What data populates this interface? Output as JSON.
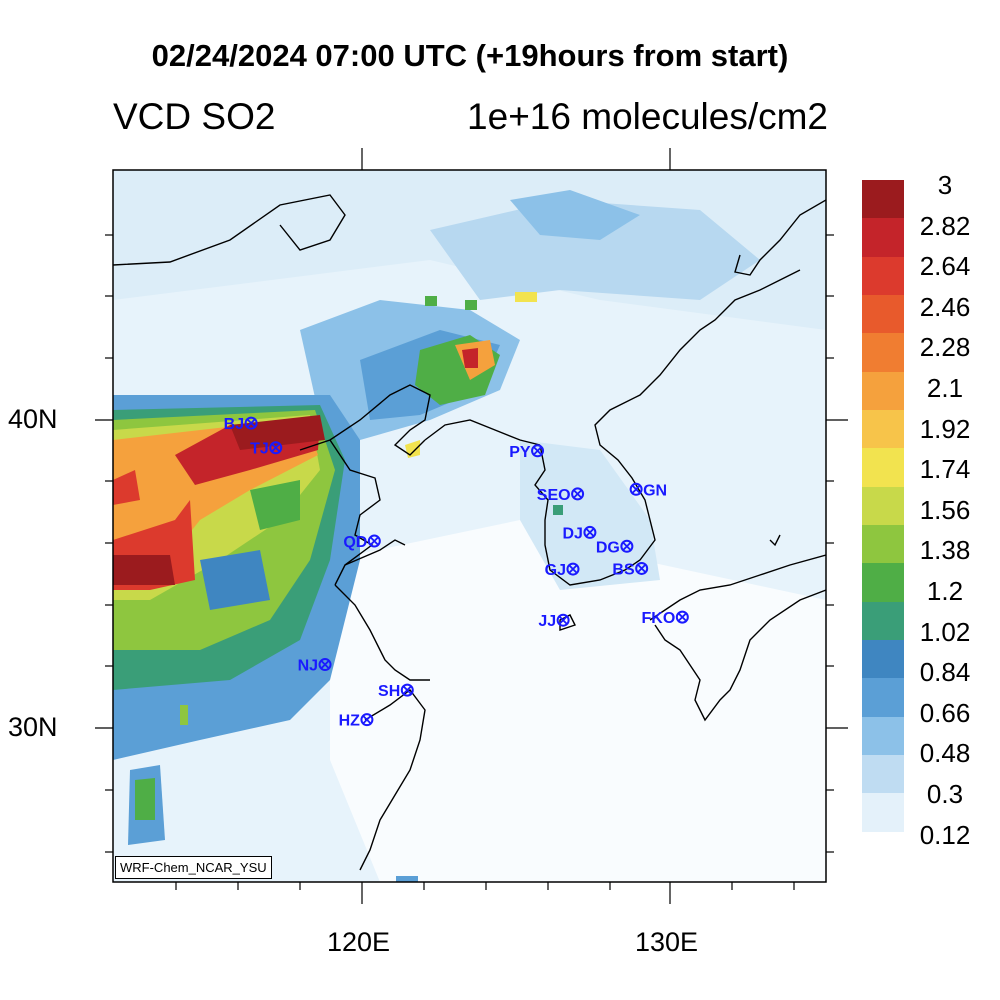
{
  "title": "02/24/2024 07:00 UTC (+19hours from start)",
  "subtitle_left": "VCD SO2",
  "subtitle_right": "1e+16 molecules/cm2",
  "model_tag": "WRF-Chem_NCAR_YSU",
  "lat_labels": [
    "40N",
    "30N"
  ],
  "lon_labels": [
    "120E",
    "130E"
  ],
  "colorbar": {
    "labels": [
      "3",
      "2.82",
      "2.64",
      "2.46",
      "2.28",
      "2.1",
      "1.92",
      "1.74",
      "1.56",
      "1.38",
      "1.2",
      "1.02",
      "0.84",
      "0.66",
      "0.48",
      "0.3",
      "0.12"
    ],
    "colors": [
      "#9b1b1e",
      "#c4242a",
      "#dc3a2d",
      "#e85a2c",
      "#f07d31",
      "#f5a13d",
      "#f7c44a",
      "#f2e34f",
      "#c8d94a",
      "#8ec63f",
      "#4fae46",
      "#3a9e78",
      "#3f86c1",
      "#5b9fd6",
      "#8cc1e8",
      "#bfdcf2",
      "#e4f1fa",
      "#ffffff"
    ]
  },
  "stations": [
    {
      "code": "BJ",
      "lon": 116.4,
      "lat": 39.9
    },
    {
      "code": "TJ",
      "lon": 117.2,
      "lat": 39.1
    },
    {
      "code": "PY",
      "lon": 125.7,
      "lat": 39.0
    },
    {
      "code": "SEO",
      "lon": 127.0,
      "lat": 37.6
    },
    {
      "code": "GN",
      "lon": 128.9,
      "lat": 37.75
    },
    {
      "code": "DJ",
      "lon": 127.4,
      "lat": 36.35
    },
    {
      "code": "DG",
      "lon": 128.6,
      "lat": 35.9
    },
    {
      "code": "QD",
      "lon": 120.4,
      "lat": 36.07
    },
    {
      "code": "GJ",
      "lon": 126.85,
      "lat": 35.16
    },
    {
      "code": "BS",
      "lon": 129.08,
      "lat": 35.18
    },
    {
      "code": "JJ",
      "lon": 126.53,
      "lat": 33.5
    },
    {
      "code": "FKO",
      "lon": 130.4,
      "lat": 33.6
    },
    {
      "code": "NJ",
      "lon": 118.8,
      "lat": 32.06
    },
    {
      "code": "SH",
      "lon": 121.47,
      "lat": 31.23
    },
    {
      "code": "HZ",
      "lon": 120.16,
      "lat": 30.27
    }
  ],
  "colors": {
    "station": "#1a1aff",
    "coast": "#000000"
  }
}
